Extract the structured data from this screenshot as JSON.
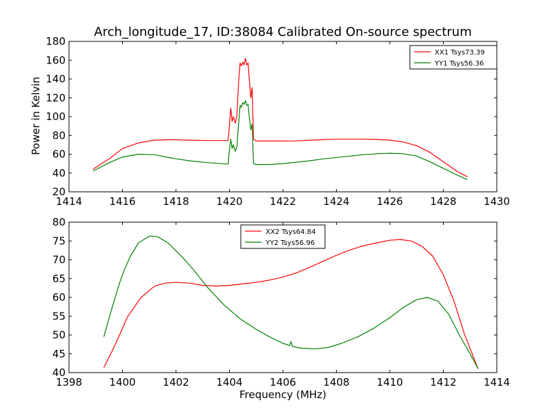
{
  "figure": {
    "title": "Arch_longitude_17, ID:38084 Calibrated On-source spectrum",
    "ylabel": "Power in Kelvin",
    "xlabel": "Frequency (MHz)"
  },
  "chart_data": [
    {
      "type": "line",
      "title": "Arch_longitude_17, ID:38084 Calibrated On-source spectrum",
      "xlabel": "",
      "ylabel": "Power in Kelvin",
      "xlim": [
        1414,
        1430
      ],
      "ylim": [
        20,
        180
      ],
      "xticks": [
        1414,
        1416,
        1418,
        1420,
        1422,
        1424,
        1426,
        1428,
        1430
      ],
      "yticks": [
        20,
        40,
        60,
        80,
        100,
        120,
        140,
        160,
        180
      ],
      "grid": false,
      "legend_position": "top-right",
      "series": [
        {
          "name": "XX1 Tsys73.39",
          "color": "#ff0000",
          "points": [
            [
              1414.9,
              44
            ],
            [
              1415.5,
              55
            ],
            [
              1416.0,
              66
            ],
            [
              1416.6,
              72
            ],
            [
              1417.2,
              75
            ],
            [
              1417.8,
              75.5
            ],
            [
              1418.5,
              75
            ],
            [
              1419.2,
              74.5
            ],
            [
              1419.95,
              74.5
            ],
            [
              1420.0,
              90
            ],
            [
              1420.05,
              109
            ],
            [
              1420.1,
              95
            ],
            [
              1420.15,
              100
            ],
            [
              1420.22,
              93
            ],
            [
              1420.28,
              101
            ],
            [
              1420.35,
              140
            ],
            [
              1420.4,
              157
            ],
            [
              1420.45,
              154
            ],
            [
              1420.5,
              158
            ],
            [
              1420.55,
              155
            ],
            [
              1420.6,
              162
            ],
            [
              1420.65,
              155
            ],
            [
              1420.7,
              157
            ],
            [
              1420.75,
              137
            ],
            [
              1420.8,
              120
            ],
            [
              1420.85,
              131
            ],
            [
              1420.9,
              76
            ],
            [
              1421.0,
              74
            ],
            [
              1421.5,
              74
            ],
            [
              1422.0,
              74
            ],
            [
              1422.5,
              74.2
            ],
            [
              1423.0,
              75
            ],
            [
              1423.5,
              75.5
            ],
            [
              1424.0,
              76
            ],
            [
              1424.5,
              76
            ],
            [
              1425.0,
              76
            ],
            [
              1425.5,
              75.7
            ],
            [
              1426.0,
              75
            ],
            [
              1426.5,
              73
            ],
            [
              1427.0,
              69
            ],
            [
              1427.5,
              62
            ],
            [
              1428.0,
              52
            ],
            [
              1428.5,
              42
            ],
            [
              1428.9,
              36
            ]
          ]
        },
        {
          "name": "YY1 Tsys56.36",
          "color": "#008000",
          "points": [
            [
              1414.9,
              42
            ],
            [
              1415.5,
              51
            ],
            [
              1416.0,
              57
            ],
            [
              1416.6,
              60
            ],
            [
              1417.2,
              59.5
            ],
            [
              1417.8,
              56
            ],
            [
              1418.5,
              53
            ],
            [
              1419.2,
              51
            ],
            [
              1419.95,
              49.5
            ],
            [
              1420.0,
              65
            ],
            [
              1420.05,
              76
            ],
            [
              1420.1,
              66
            ],
            [
              1420.15,
              70
            ],
            [
              1420.22,
              63
            ],
            [
              1420.28,
              68
            ],
            [
              1420.35,
              95
            ],
            [
              1420.4,
              112
            ],
            [
              1420.45,
              110
            ],
            [
              1420.5,
              115
            ],
            [
              1420.55,
              113
            ],
            [
              1420.6,
              117
            ],
            [
              1420.65,
              112
            ],
            [
              1420.7,
              113
            ],
            [
              1420.75,
              97
            ],
            [
              1420.8,
              86
            ],
            [
              1420.85,
              92
            ],
            [
              1420.9,
              50
            ],
            [
              1421.0,
              49
            ],
            [
              1421.5,
              49
            ],
            [
              1422.0,
              50
            ],
            [
              1422.5,
              51.5
            ],
            [
              1423.0,
              53
            ],
            [
              1423.5,
              55
            ],
            [
              1424.0,
              56.5
            ],
            [
              1424.5,
              58
            ],
            [
              1425.0,
              59.5
            ],
            [
              1425.5,
              60.5
            ],
            [
              1426.0,
              61
            ],
            [
              1426.5,
              60.5
            ],
            [
              1427.0,
              58
            ],
            [
              1427.5,
              52
            ],
            [
              1428.0,
              45
            ],
            [
              1428.5,
              38
            ],
            [
              1428.9,
              33
            ]
          ]
        }
      ]
    },
    {
      "type": "line",
      "title": "",
      "xlabel": "Frequency (MHz)",
      "ylabel": "",
      "xlim": [
        1398,
        1414
      ],
      "ylim": [
        40,
        80
      ],
      "xticks": [
        1398,
        1400,
        1402,
        1404,
        1406,
        1408,
        1410,
        1412,
        1414
      ],
      "yticks": [
        40,
        45,
        50,
        55,
        60,
        65,
        70,
        75,
        80
      ],
      "grid": false,
      "legend_position": "top-center",
      "series": [
        {
          "name": "XX2 Tsys64.84",
          "color": "#ff0000",
          "points": [
            [
              1399.3,
              41.3
            ],
            [
              1399.7,
              47
            ],
            [
              1400.2,
              55
            ],
            [
              1400.7,
              60
            ],
            [
              1401.2,
              63
            ],
            [
              1401.6,
              63.8
            ],
            [
              1402.0,
              64
            ],
            [
              1402.5,
              63.8
            ],
            [
              1403.0,
              63.2
            ],
            [
              1403.5,
              63
            ],
            [
              1404.0,
              63.2
            ],
            [
              1404.5,
              63.6
            ],
            [
              1405.0,
              64
            ],
            [
              1405.5,
              64.6
            ],
            [
              1406.0,
              65.4
            ],
            [
              1406.5,
              66.5
            ],
            [
              1407.0,
              68
            ],
            [
              1407.5,
              69.6
            ],
            [
              1408.0,
              71.2
            ],
            [
              1408.5,
              72.6
            ],
            [
              1409.0,
              73.7
            ],
            [
              1409.5,
              74.5
            ],
            [
              1410.0,
              75.2
            ],
            [
              1410.4,
              75.4
            ],
            [
              1410.8,
              75
            ],
            [
              1411.2,
              73.6
            ],
            [
              1411.6,
              71
            ],
            [
              1412.0,
              66
            ],
            [
              1412.4,
              59
            ],
            [
              1412.8,
              50
            ],
            [
              1413.3,
              41
            ]
          ]
        },
        {
          "name": "YY2 Tsys56.96",
          "color": "#008000",
          "points": [
            [
              1399.3,
              49.5
            ],
            [
              1399.6,
              57
            ],
            [
              1399.9,
              64
            ],
            [
              1400.05,
              67
            ],
            [
              1400.3,
              71
            ],
            [
              1400.6,
              74.5
            ],
            [
              1401.0,
              76.3
            ],
            [
              1401.3,
              76.2
            ],
            [
              1401.7,
              74.5
            ],
            [
              1402.2,
              71
            ],
            [
              1402.7,
              67
            ],
            [
              1403.2,
              62.5
            ],
            [
              1403.8,
              58
            ],
            [
              1404.4,
              54.3
            ],
            [
              1405.0,
              51.5
            ],
            [
              1405.5,
              49.5
            ],
            [
              1406.0,
              47.8
            ],
            [
              1406.25,
              47.2
            ],
            [
              1406.3,
              48.3
            ],
            [
              1406.35,
              47
            ],
            [
              1406.7,
              46.5
            ],
            [
              1407.2,
              46.3
            ],
            [
              1407.7,
              46.7
            ],
            [
              1408.2,
              47.8
            ],
            [
              1408.8,
              49.5
            ],
            [
              1409.4,
              51.8
            ],
            [
              1410.0,
              54.6
            ],
            [
              1410.5,
              57.3
            ],
            [
              1411.0,
              59.4
            ],
            [
              1411.4,
              60
            ],
            [
              1411.8,
              59
            ],
            [
              1412.2,
              55.5
            ],
            [
              1412.6,
              50
            ],
            [
              1413.0,
              45
            ],
            [
              1413.3,
              41
            ]
          ]
        }
      ]
    }
  ]
}
